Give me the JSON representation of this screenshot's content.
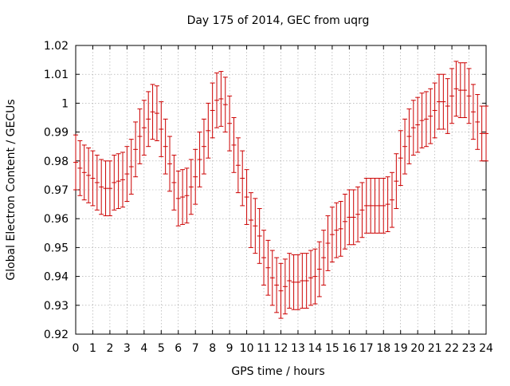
{
  "chart_data": {
    "type": "scatter",
    "title": "Day 175 of 2014, GEC from uqrg",
    "xlabel": "GPS time / hours",
    "ylabel": "Global Electron Content / GECUs",
    "xlim": [
      0,
      24
    ],
    "ylim": [
      0.92,
      1.02
    ],
    "x_ticks": [
      0,
      1,
      2,
      3,
      4,
      5,
      6,
      7,
      8,
      9,
      10,
      11,
      12,
      13,
      14,
      15,
      16,
      17,
      18,
      19,
      20,
      21,
      22,
      23,
      24
    ],
    "y_ticks": [
      0.92,
      0.93,
      0.94,
      0.95,
      0.96,
      0.97,
      0.98,
      0.99,
      1,
      1.01,
      1.02
    ],
    "x_tick_labels": [
      "0",
      "1",
      "2",
      "3",
      "4",
      "5",
      "6",
      "7",
      "8",
      "9",
      "10",
      "11",
      "12",
      "13",
      "14",
      "15",
      "16",
      "17",
      "18",
      "19",
      "20",
      "21",
      "22",
      "23",
      "24"
    ],
    "y_tick_labels": [
      "0.92",
      "0.93",
      "0.94",
      "0.95",
      "0.96",
      "0.97",
      "0.98",
      "0.99",
      "1",
      "1.01",
      "1.02"
    ],
    "grid": true,
    "series": [
      {
        "color": "#cc0000",
        "x": [
          0,
          0.25,
          0.5,
          0.75,
          1,
          1.25,
          1.5,
          1.75,
          2,
          2.25,
          2.5,
          2.75,
          3,
          3.25,
          3.5,
          3.75,
          4,
          4.25,
          4.5,
          4.75,
          5,
          5.25,
          5.5,
          5.75,
          6,
          6.25,
          6.5,
          6.75,
          7,
          7.25,
          7.5,
          7.75,
          8,
          8.25,
          8.5,
          8.75,
          9,
          9.25,
          9.5,
          9.75,
          10,
          10.25,
          10.5,
          10.75,
          11,
          11.25,
          11.5,
          11.75,
          12,
          12.25,
          12.5,
          12.75,
          13,
          13.25,
          13.5,
          13.75,
          14,
          14.25,
          14.5,
          14.75,
          15,
          15.25,
          15.5,
          15.75,
          16,
          16.25,
          16.5,
          16.75,
          17,
          17.25,
          17.5,
          17.75,
          18,
          18.25,
          18.5,
          18.75,
          19,
          19.25,
          19.5,
          19.75,
          20,
          20.25,
          20.5,
          20.75,
          21,
          21.25,
          21.5,
          21.75,
          22,
          22.25,
          22.5,
          22.75,
          23,
          23.25,
          23.5,
          23.75,
          24
        ],
        "y": [
          0.9795,
          0.9775,
          0.976,
          0.975,
          0.974,
          0.9725,
          0.971,
          0.9705,
          0.9705,
          0.9725,
          0.973,
          0.9735,
          0.9755,
          0.978,
          0.984,
          0.9885,
          0.9915,
          0.9945,
          0.997,
          0.9965,
          0.991,
          0.985,
          0.979,
          0.9725,
          0.967,
          0.9675,
          0.968,
          0.971,
          0.9745,
          0.9805,
          0.985,
          0.9905,
          0.9975,
          1.001,
          1.0015,
          0.9995,
          0.993,
          0.9855,
          0.9785,
          0.974,
          0.9675,
          0.9595,
          0.9575,
          0.954,
          0.9465,
          0.943,
          0.9395,
          0.937,
          0.935,
          0.9365,
          0.9385,
          0.938,
          0.938,
          0.9385,
          0.9385,
          0.9395,
          0.94,
          0.9425,
          0.9465,
          0.9515,
          0.9545,
          0.956,
          0.9565,
          0.959,
          0.9605,
          0.9605,
          0.9615,
          0.963,
          0.9645,
          0.9645,
          0.9645,
          0.9645,
          0.9645,
          0.965,
          0.9665,
          0.973,
          0.981,
          0.985,
          0.9885,
          0.9915,
          0.9925,
          0.994,
          0.9945,
          0.9955,
          0.9975,
          1.0005,
          1.0005,
          0.999,
          1.0025,
          1.005,
          1.0045,
          1.0045,
          1.0025,
          0.997,
          0.9935,
          0.9895,
          0.9895
        ],
        "err": [
          0.0095,
          0.0095,
          0.0095,
          0.0095,
          0.0095,
          0.0095,
          0.0095,
          0.0095,
          0.0095,
          0.0095,
          0.0095,
          0.0095,
          0.0095,
          0.0095,
          0.0095,
          0.0095,
          0.0095,
          0.0095,
          0.0095,
          0.0095,
          0.0095,
          0.0095,
          0.0095,
          0.0095,
          0.0095,
          0.0095,
          0.0095,
          0.0095,
          0.0095,
          0.0095,
          0.0095,
          0.0095,
          0.0095,
          0.0095,
          0.0095,
          0.0095,
          0.0095,
          0.0095,
          0.0095,
          0.0095,
          0.0095,
          0.0095,
          0.0095,
          0.0095,
          0.0095,
          0.0095,
          0.0095,
          0.0095,
          0.0095,
          0.0095,
          0.0095,
          0.0095,
          0.0095,
          0.0095,
          0.0095,
          0.0095,
          0.0095,
          0.0095,
          0.0095,
          0.0095,
          0.0095,
          0.0095,
          0.0095,
          0.0095,
          0.0095,
          0.0095,
          0.0095,
          0.0095,
          0.0095,
          0.0095,
          0.0095,
          0.0095,
          0.0095,
          0.0095,
          0.0095,
          0.0095,
          0.0095,
          0.0095,
          0.0095,
          0.0095,
          0.0095,
          0.0095,
          0.0095,
          0.0095,
          0.0095,
          0.0095,
          0.0095,
          0.0095,
          0.0095,
          0.0095,
          0.0095,
          0.0095,
          0.0095,
          0.0095,
          0.0095,
          0.0095,
          0.0095
        ]
      }
    ]
  }
}
